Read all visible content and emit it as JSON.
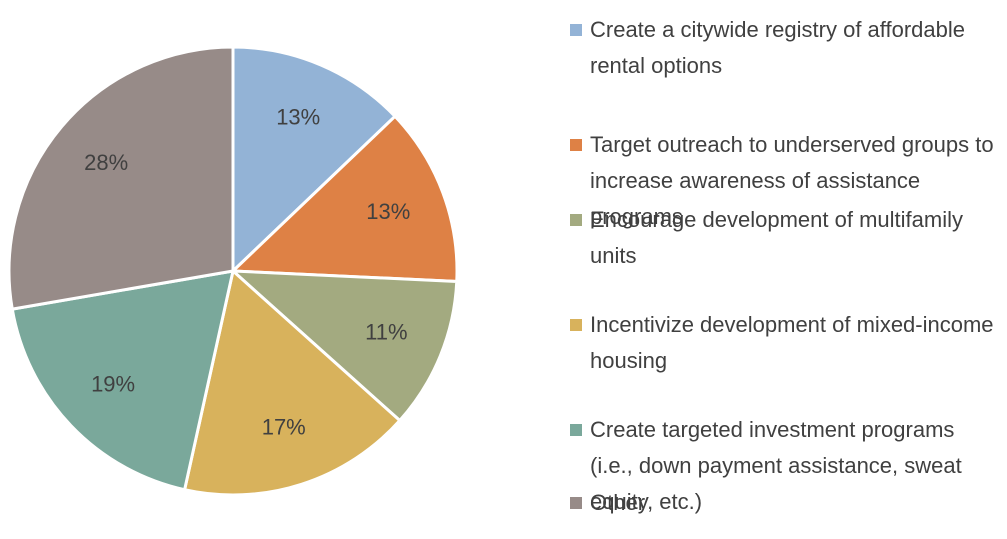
{
  "chart_data": {
    "type": "pie",
    "categories": [
      "Create a citywide registry of affordable rental options",
      "Target outreach to underserved groups to increase awareness of assistance programs",
      "Encourage development of multifamily units",
      "Incentivize development of mixed-income housing",
      "Create targeted investment programs (i.e., down payment assistance, sweat equity, etc.)",
      "Other"
    ],
    "values": [
      13,
      13,
      11,
      17,
      19,
      28
    ],
    "value_labels": [
      "13%",
      "13%",
      "11%",
      "17%",
      "19%",
      "28%"
    ],
    "colors": [
      "#93b3d6",
      "#de8145",
      "#a3aa80",
      "#d8b25c",
      "#7aa89b",
      "#978b88"
    ],
    "legend": "right"
  }
}
